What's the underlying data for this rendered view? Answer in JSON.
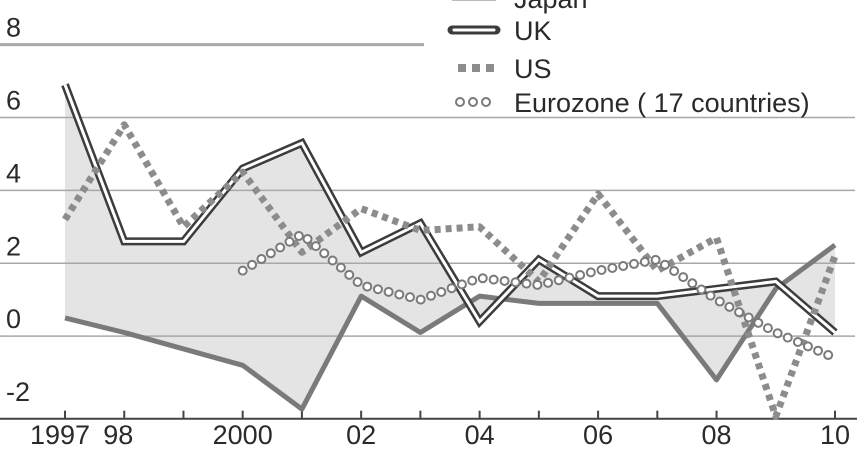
{
  "chart_data": {
    "type": "line",
    "x": [
      1997,
      1998,
      1999,
      2000,
      2001,
      2002,
      2003,
      2004,
      2005,
      2006,
      2007,
      2008,
      2009,
      2010
    ],
    "x_tick_labels": [
      {
        "x": 1997,
        "label": "1997"
      },
      {
        "x": 1998,
        "label": "98"
      },
      {
        "x": 2000,
        "label": "2000"
      },
      {
        "x": 2002,
        "label": "02"
      },
      {
        "x": 2004,
        "label": "04"
      },
      {
        "x": 2006,
        "label": "06"
      },
      {
        "x": 2008,
        "label": "08"
      },
      {
        "x": 2010,
        "label": "10"
      }
    ],
    "y_ticks": [
      -2,
      0,
      2,
      4,
      6,
      8
    ],
    "ylim": [
      -2.3,
      8.4
    ],
    "xlim": [
      1996.95,
      2010.35
    ],
    "grid": true,
    "legend_position": "top-right",
    "series": [
      {
        "name": "Japan",
        "style": "gray-solid",
        "color": "#7a7a7a",
        "points": [
          [
            1997,
            0.5
          ],
          [
            1998,
            0.1
          ],
          [
            2000,
            -0.8
          ],
          [
            2001,
            -2.0
          ],
          [
            2002,
            1.1
          ],
          [
            2003,
            0.1
          ],
          [
            2004,
            1.1
          ],
          [
            2005,
            0.9
          ],
          [
            2006,
            0.9
          ],
          [
            2007,
            0.9
          ],
          [
            2008,
            -1.2
          ],
          [
            2009,
            1.3
          ],
          [
            2010,
            2.5
          ]
        ]
      },
      {
        "name": "UK",
        "style": "double-line",
        "color": "#3c3c3c",
        "points": [
          [
            1997,
            6.9
          ],
          [
            1998,
            2.6
          ],
          [
            1999,
            2.6
          ],
          [
            2000,
            4.6
          ],
          [
            2001,
            5.3
          ],
          [
            2002,
            2.3
          ],
          [
            2003,
            3.1
          ],
          [
            2004,
            0.4
          ],
          [
            2005,
            2.1
          ],
          [
            2006,
            1.1
          ],
          [
            2007,
            1.1
          ],
          [
            2008,
            1.3
          ],
          [
            2009,
            1.5
          ],
          [
            2010,
            0.1
          ]
        ]
      },
      {
        "name": "US",
        "style": "square-dots",
        "color": "#8c8c8c",
        "points": [
          [
            1997,
            3.2
          ],
          [
            1998,
            5.8
          ],
          [
            1999,
            3.0
          ],
          [
            2000,
            4.5
          ],
          [
            2001,
            2.3
          ],
          [
            2002,
            3.5
          ],
          [
            2003,
            2.9
          ],
          [
            2004,
            3.0
          ],
          [
            2005,
            1.5
          ],
          [
            2006,
            3.9
          ],
          [
            2007,
            1.8
          ],
          [
            2008,
            2.7
          ],
          [
            2009,
            -2.2
          ],
          [
            2010,
            2.2
          ]
        ]
      },
      {
        "name": "Eurozone ( 17 countries)",
        "style": "hollow-circles",
        "color": "#7a7a7a",
        "points": [
          [
            2000,
            1.8
          ],
          [
            2001,
            2.8
          ],
          [
            2002,
            1.4
          ],
          [
            2003,
            1.0
          ],
          [
            2004,
            1.6
          ],
          [
            2005,
            1.4
          ],
          [
            2006,
            1.8
          ],
          [
            2007,
            2.1
          ],
          [
            2008,
            1.0
          ],
          [
            2009,
            0.1
          ],
          [
            2010,
            -0.6
          ]
        ]
      }
    ],
    "shaded_band": {
      "between": [
        "UK",
        "Japan"
      ],
      "color": "#e4e4e4"
    }
  }
}
